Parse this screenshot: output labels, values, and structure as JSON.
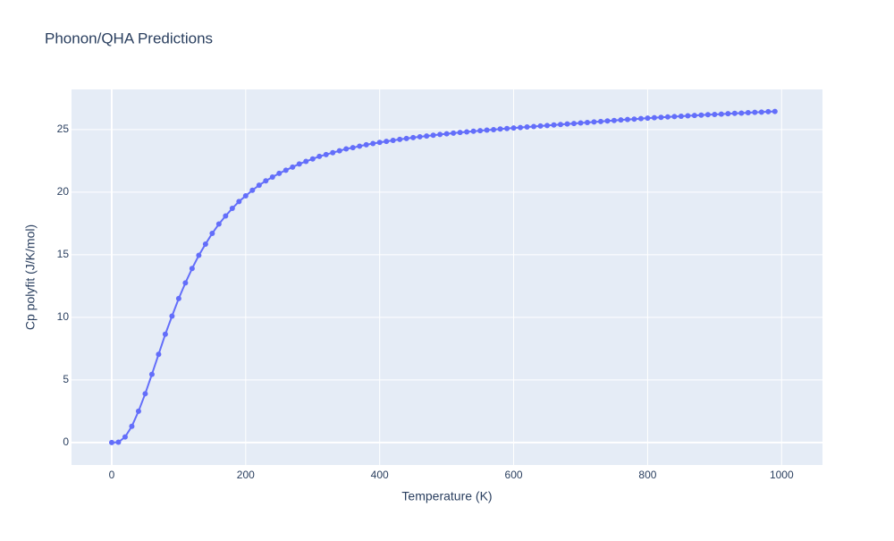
{
  "chart_data": {
    "type": "line",
    "title": "Phonon/QHA Predictions",
    "x_label": "Temperature (K)",
    "y_label": "Cp polyfit (J/K/mol)",
    "x": [
      0,
      10,
      20,
      30,
      40,
      50,
      60,
      70,
      80,
      90,
      100,
      110,
      120,
      130,
      140,
      150,
      160,
      170,
      180,
      190,
      200,
      210,
      220,
      230,
      240,
      250,
      260,
      270,
      280,
      290,
      300,
      310,
      320,
      330,
      340,
      350,
      360,
      370,
      380,
      390,
      400,
      410,
      420,
      430,
      440,
      450,
      460,
      470,
      480,
      490,
      500,
      510,
      520,
      530,
      540,
      550,
      560,
      570,
      580,
      590,
      600,
      610,
      620,
      630,
      640,
      650,
      660,
      670,
      680,
      690,
      700,
      710,
      720,
      730,
      740,
      750,
      760,
      770,
      780,
      790,
      800,
      810,
      820,
      830,
      840,
      850,
      860,
      870,
      880,
      890,
      900,
      910,
      920,
      930,
      940,
      950,
      960,
      970,
      980,
      990
    ],
    "series": [
      {
        "color": "#636efa",
        "values": [
          0,
          0.03,
          0.45,
          1.3,
          2.5,
          3.9,
          5.45,
          7.05,
          8.65,
          10.1,
          11.5,
          12.75,
          13.9,
          14.95,
          15.85,
          16.7,
          17.45,
          18.1,
          18.7,
          19.25,
          19.7,
          20.15,
          20.55,
          20.9,
          21.2,
          21.5,
          21.75,
          22.0,
          22.25,
          22.45,
          22.65,
          22.85,
          23.0,
          23.15,
          23.3,
          23.45,
          23.55,
          23.67,
          23.78,
          23.88,
          23.97,
          24.05,
          24.13,
          24.21,
          24.28,
          24.35,
          24.42,
          24.48,
          24.54,
          24.6,
          24.66,
          24.71,
          24.76,
          24.81,
          24.86,
          24.91,
          24.95,
          24.99,
          25.04,
          25.08,
          25.12,
          25.16,
          25.2,
          25.24,
          25.28,
          25.32,
          25.36,
          25.4,
          25.44,
          25.48,
          25.52,
          25.56,
          25.6,
          25.64,
          25.68,
          25.72,
          25.76,
          25.8,
          25.83,
          25.87,
          25.91,
          25.94,
          25.97,
          26.0,
          26.03,
          26.06,
          26.09,
          26.12,
          26.15,
          26.18,
          26.2,
          26.23,
          26.26,
          26.29,
          26.31,
          26.34,
          26.37,
          26.39,
          26.42,
          26.44
        ]
      }
    ],
    "xlim": [
      -60,
      1061
    ],
    "ylim": [
      -1.79,
      28.2
    ],
    "xticks": [
      0,
      200,
      400,
      600,
      800,
      1000
    ],
    "yticks": [
      0,
      5,
      10,
      15,
      20,
      25
    ],
    "grid": true
  }
}
